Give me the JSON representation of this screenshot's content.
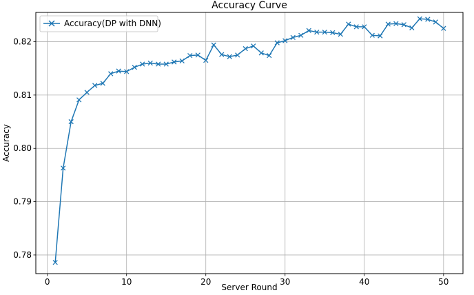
{
  "chart_data": {
    "type": "line",
    "title": "Accuracy Curve",
    "xlabel": "Server Round",
    "ylabel": "Accuracy",
    "xlim": [
      -1.45,
      52.45
    ],
    "ylim": [
      0.7765,
      0.8255
    ],
    "xticks": [
      0,
      10,
      20,
      30,
      40,
      50
    ],
    "xtick_labels": [
      "0",
      "10",
      "20",
      "30",
      "40",
      "50"
    ],
    "yticks": [
      0.78,
      0.79,
      0.8,
      0.81,
      0.82
    ],
    "ytick_labels": [
      "0.78",
      "0.79",
      "0.80",
      "0.81",
      "0.82"
    ],
    "grid": true,
    "legend_position": "upper-left",
    "marker": "x",
    "series": [
      {
        "name": "Accuracy(DP with DNN)",
        "color": "#1f77b4",
        "x": [
          1,
          2,
          3,
          4,
          5,
          6,
          7,
          8,
          9,
          10,
          11,
          12,
          13,
          14,
          15,
          16,
          17,
          18,
          19,
          20,
          21,
          22,
          23,
          24,
          25,
          26,
          27,
          28,
          29,
          30,
          31,
          32,
          33,
          34,
          35,
          36,
          37,
          38,
          39,
          40,
          41,
          42,
          43,
          44,
          45,
          46,
          47,
          48,
          49,
          50
        ],
        "y": [
          0.7786,
          0.7963,
          0.805,
          0.8091,
          0.8105,
          0.8118,
          0.8122,
          0.814,
          0.8145,
          0.8144,
          0.8152,
          0.8158,
          0.816,
          0.8158,
          0.8158,
          0.8162,
          0.8164,
          0.8174,
          0.8175,
          0.8165,
          0.8194,
          0.8176,
          0.8172,
          0.8175,
          0.8187,
          0.8192,
          0.8179,
          0.8174,
          0.8198,
          0.8202,
          0.8208,
          0.8212,
          0.8221,
          0.8218,
          0.8218,
          0.8217,
          0.8214,
          0.8233,
          0.8228,
          0.8228,
          0.8212,
          0.8211,
          0.8233,
          0.8234,
          0.8232,
          0.8226,
          0.8243,
          0.8242,
          0.8237,
          0.8225
        ]
      }
    ]
  }
}
